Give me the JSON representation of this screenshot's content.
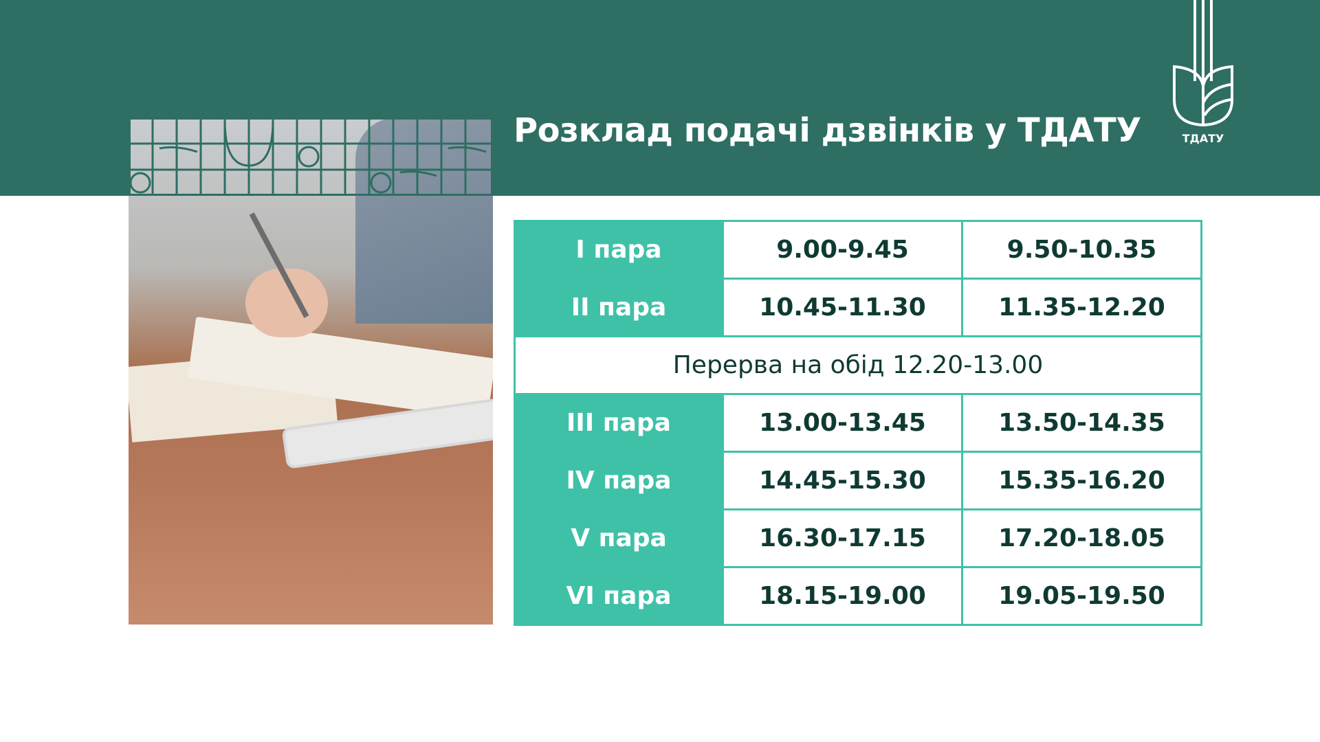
{
  "header": {
    "title": "Розклад подачі дзвінків у ТДАТУ",
    "logo_text": "ТДАТУ"
  },
  "colors": {
    "header": "#2e6e63",
    "accent": "#3fc1a8",
    "text": "#0f3a33"
  },
  "schedule": {
    "rows": [
      {
        "label": "I пара",
        "first": "9.00-9.45",
        "second": "9.50-10.35"
      },
      {
        "label": "II пара",
        "first": "10.45-11.30",
        "second": "11.35-12.20"
      },
      {
        "label": "III пара",
        "first": "13.00-13.45",
        "second": "13.50-14.35"
      },
      {
        "label": "IV пара",
        "first": "14.45-15.30",
        "second": "15.35-16.20"
      },
      {
        "label": "V пара",
        "first": "16.30-17.15",
        "second": "17.20-18.05"
      },
      {
        "label": "VI пара",
        "first": "18.15-19.00",
        "second": "19.05-19.50"
      }
    ],
    "break": "Перерва на обід 12.20-13.00"
  }
}
